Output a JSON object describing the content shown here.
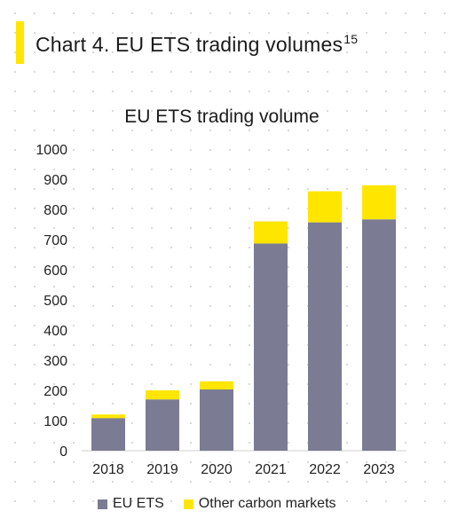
{
  "header": {
    "title": "Chart 4. EU ETS trading volumes",
    "footnote": "15"
  },
  "colors": {
    "accent": "#ffe600",
    "eu_ets": "#7b7b93",
    "other": "#ffe600"
  },
  "chart_data": {
    "type": "bar",
    "stacked": true,
    "title": "EU ETS trading volume",
    "xlabel": "",
    "ylabel": "",
    "categories": [
      "2018",
      "2019",
      "2020",
      "2021",
      "2022",
      "2023"
    ],
    "series": [
      {
        "name": "EU ETS",
        "color": "#7b7b93",
        "values": [
          108,
          170,
          203,
          687,
          757,
          767
        ]
      },
      {
        "name": "Other carbon markets",
        "color": "#ffe600",
        "values": [
          12,
          30,
          27,
          73,
          103,
          113
        ]
      }
    ],
    "ylim": [
      0,
      1000
    ],
    "yticks": [
      0,
      100,
      200,
      300,
      400,
      500,
      600,
      700,
      800,
      900,
      1000
    ],
    "grid": false,
    "legend": "bottom"
  }
}
